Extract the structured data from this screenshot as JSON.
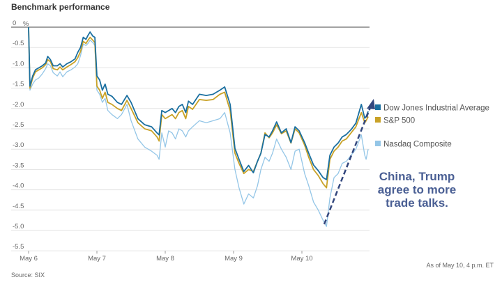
{
  "chart_data": {
    "type": "line",
    "title": "Benchmark performance",
    "ylabel": "%",
    "ylim": [
      -5.5,
      0
    ],
    "yticks": [
      "0",
      "-0.5",
      "-1.0",
      "-1.5",
      "-2.0",
      "-2.5",
      "-3.0",
      "-3.5",
      "-4.0",
      "-4.5",
      "-5.0",
      "-5.5"
    ],
    "ytick_values": [
      0,
      -0.5,
      -1,
      -1.5,
      -2,
      -2.5,
      -3,
      -3.5,
      -4,
      -4.5,
      -5,
      -5.5
    ],
    "xlabel": "",
    "xticks": [
      "May 6",
      "May 7",
      "May 8",
      "May 9",
      "May 10"
    ],
    "xtick_values": [
      0,
      1,
      2,
      3,
      4
    ],
    "xlim": [
      0,
      5
    ],
    "grid": true,
    "legend_position": "right",
    "x": [
      0,
      0.02,
      0.06,
      0.1,
      0.15,
      0.2,
      0.25,
      0.28,
      0.32,
      0.36,
      0.42,
      0.46,
      0.5,
      0.56,
      0.62,
      0.68,
      0.72,
      0.76,
      0.8,
      0.84,
      0.87,
      0.9,
      0.94,
      0.97,
      1.0,
      1.04,
      1.08,
      1.12,
      1.16,
      1.22,
      1.3,
      1.36,
      1.44,
      1.5,
      1.6,
      1.7,
      1.8,
      1.88,
      1.91,
      1.95,
      2.0,
      2.05,
      2.1,
      2.15,
      2.2,
      2.25,
      2.3,
      2.34,
      2.4,
      2.5,
      2.6,
      2.7,
      2.8,
      2.87,
      2.95,
      3.02,
      3.08,
      3.15,
      3.22,
      3.29,
      3.35,
      3.4,
      3.46,
      3.52,
      3.57,
      3.63,
      3.7,
      3.77,
      3.84,
      3.9,
      3.96,
      4.04,
      4.1,
      4.17,
      4.24,
      4.31,
      4.36,
      4.41,
      4.47,
      4.53,
      4.59,
      4.65,
      4.72,
      4.79,
      4.87,
      4.92,
      4.94,
      4.97
    ],
    "series": [
      {
        "name": "Dow Jones Industrial Average",
        "color": "#1a6fa0",
        "values": [
          0,
          -1.45,
          -1.2,
          -1.05,
          -1.0,
          -0.95,
          -0.88,
          -0.72,
          -0.8,
          -0.95,
          -0.95,
          -0.9,
          -0.98,
          -0.9,
          -0.85,
          -0.78,
          -0.62,
          -0.5,
          -0.25,
          -0.3,
          -0.2,
          -0.12,
          -0.22,
          -0.25,
          -1.2,
          -1.3,
          -1.55,
          -1.4,
          -1.65,
          -1.7,
          -1.85,
          -1.9,
          -1.68,
          -1.85,
          -2.25,
          -2.4,
          -2.45,
          -2.6,
          -2.65,
          -2.05,
          -2.1,
          -2.05,
          -2.0,
          -2.1,
          -1.95,
          -1.9,
          -2.1,
          -1.82,
          -1.9,
          -1.65,
          -1.68,
          -1.65,
          -1.55,
          -1.47,
          -1.9,
          -2.98,
          -3.25,
          -3.55,
          -3.4,
          -3.58,
          -3.3,
          -3.1,
          -2.64,
          -2.7,
          -2.55,
          -2.33,
          -2.6,
          -2.5,
          -2.84,
          -2.45,
          -2.55,
          -2.84,
          -3.1,
          -3.39,
          -3.53,
          -3.7,
          -3.75,
          -3.15,
          -2.95,
          -2.85,
          -2.7,
          -2.64,
          -2.52,
          -2.36,
          -1.9,
          -2.24,
          -2.2,
          -2.07
        ]
      },
      {
        "name": "S&P 500",
        "color": "#c9a227",
        "values": [
          0,
          -1.5,
          -1.25,
          -1.1,
          -1.05,
          -1.0,
          -0.92,
          -0.8,
          -0.85,
          -1.02,
          -1.05,
          -0.98,
          -1.05,
          -0.98,
          -0.92,
          -0.85,
          -0.75,
          -0.6,
          -0.35,
          -0.4,
          -0.32,
          -0.25,
          -0.32,
          -0.38,
          -1.45,
          -1.55,
          -1.75,
          -1.6,
          -1.85,
          -1.9,
          -2.0,
          -2.05,
          -1.8,
          -2.0,
          -2.35,
          -2.5,
          -2.55,
          -2.7,
          -2.8,
          -2.15,
          -2.25,
          -2.2,
          -2.15,
          -2.25,
          -2.1,
          -2.05,
          -2.25,
          -1.95,
          -2.02,
          -1.78,
          -1.8,
          -1.78,
          -1.65,
          -1.6,
          -2.05,
          -3.1,
          -3.35,
          -3.6,
          -3.5,
          -3.55,
          -3.3,
          -3.1,
          -2.6,
          -2.72,
          -2.6,
          -2.4,
          -2.62,
          -2.55,
          -2.85,
          -2.5,
          -2.6,
          -2.9,
          -3.2,
          -3.5,
          -3.65,
          -3.85,
          -3.95,
          -3.25,
          -3.05,
          -2.95,
          -2.8,
          -2.75,
          -2.6,
          -2.45,
          -2.1,
          -2.35,
          -2.3,
          -2.2
        ]
      },
      {
        "name": "Nasdaq Composite",
        "color": "#94c6e7",
        "values": [
          0,
          -1.55,
          -1.4,
          -1.3,
          -1.25,
          -1.15,
          -1.02,
          -0.9,
          -0.95,
          -1.12,
          -1.2,
          -1.1,
          -1.22,
          -1.1,
          -1.05,
          -0.98,
          -0.9,
          -0.7,
          -0.42,
          -0.45,
          -0.4,
          -0.32,
          -0.38,
          -0.45,
          -1.55,
          -1.65,
          -1.85,
          -1.75,
          -2.05,
          -2.15,
          -2.25,
          -2.15,
          -1.9,
          -2.3,
          -2.75,
          -2.95,
          -3.05,
          -3.15,
          -3.25,
          -2.6,
          -2.95,
          -2.55,
          -2.6,
          -2.75,
          -2.5,
          -2.55,
          -2.7,
          -2.55,
          -2.45,
          -2.3,
          -2.35,
          -2.3,
          -2.25,
          -2.1,
          -2.6,
          -3.5,
          -3.95,
          -4.35,
          -4.1,
          -4.2,
          -3.9,
          -3.5,
          -3.2,
          -3.3,
          -3.1,
          -2.75,
          -3.0,
          -3.2,
          -3.5,
          -3.05,
          -3.0,
          -3.6,
          -3.9,
          -4.3,
          -4.5,
          -4.75,
          -4.9,
          -4.2,
          -3.7,
          -3.6,
          -3.35,
          -3.3,
          -3.15,
          -3.0,
          -2.65,
          -3.15,
          -3.25,
          -3.0
        ]
      }
    ],
    "annotation": "China, Trump agree to more trade talks.",
    "annotation_lines": [
      "China, Trump",
      "agree to more",
      "trade talks."
    ],
    "source": "Source: SIX",
    "as_of": "As of May 10, 4 p.m. ET"
  }
}
